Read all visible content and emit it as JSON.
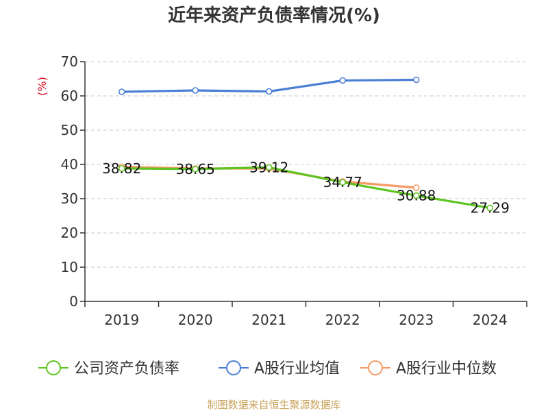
{
  "chart_data": {
    "type": "line",
    "title": "近年来资产负债率情况(%)",
    "ylabel": "(%)",
    "xlabel": "",
    "categories": [
      "2019",
      "2020",
      "2021",
      "2022",
      "2023",
      "2024"
    ],
    "ylim": [
      0,
      70
    ],
    "yticks": [
      "0",
      "10",
      "20",
      "30",
      "40",
      "50",
      "60",
      "70"
    ],
    "grid": true,
    "legend_position": "bottom",
    "series": [
      {
        "name": "公司资产负债率",
        "color": "#5ec421",
        "values": [
          38.82,
          38.65,
          39.12,
          34.77,
          30.88,
          27.29
        ],
        "labels": [
          "38.82",
          "38.65",
          "39.12",
          "34.77",
          "30.88",
          "27.29"
        ]
      },
      {
        "name": "A股行业均值",
        "color": "#4a7fd6",
        "values": [
          61.2,
          61.6,
          61.3,
          64.5,
          64.7,
          null
        ]
      },
      {
        "name": "A股行业中位数",
        "color": "#f59a62",
        "values": [
          39.3,
          38.8,
          38.8,
          35.0,
          33.2,
          null
        ]
      }
    ],
    "source": "制图数据来自恒生聚源数据库",
    "source_color": "#c8a25a",
    "ylabel_color": "#d0021b"
  }
}
